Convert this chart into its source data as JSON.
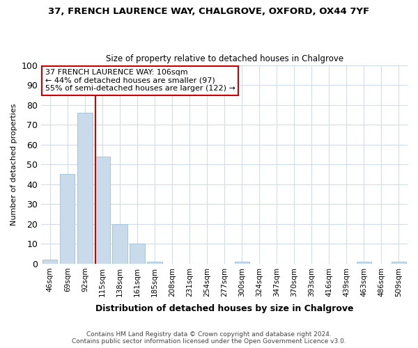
{
  "title": "37, FRENCH LAURENCE WAY, CHALGROVE, OXFORD, OX44 7YF",
  "subtitle": "Size of property relative to detached houses in Chalgrove",
  "xlabel": "Distribution of detached houses by size in Chalgrove",
  "ylabel": "Number of detached properties",
  "bar_labels": [
    "46sqm",
    "69sqm",
    "92sqm",
    "115sqm",
    "138sqm",
    "161sqm",
    "185sqm",
    "208sqm",
    "231sqm",
    "254sqm",
    "277sqm",
    "300sqm",
    "324sqm",
    "347sqm",
    "370sqm",
    "393sqm",
    "416sqm",
    "439sqm",
    "463sqm",
    "486sqm",
    "509sqm"
  ],
  "bar_values": [
    2,
    45,
    76,
    54,
    20,
    10,
    1,
    0,
    0,
    0,
    0,
    1,
    0,
    0,
    0,
    0,
    0,
    0,
    1,
    0,
    1
  ],
  "bar_color": "#c9daea",
  "bar_edge_color": "#a8c4d8",
  "vline_color": "#cc0000",
  "annotation_title": "37 FRENCH LAURENCE WAY: 106sqm",
  "annotation_line2": "← 44% of detached houses are smaller (97)",
  "annotation_line3": "55% of semi-detached houses are larger (122) →",
  "annotation_box_color": "#ffffff",
  "annotation_box_edge": "#cc0000",
  "ylim": [
    0,
    100
  ],
  "yticks": [
    0,
    10,
    20,
    30,
    40,
    50,
    60,
    70,
    80,
    90,
    100
  ],
  "footer_line1": "Contains HM Land Registry data © Crown copyright and database right 2024.",
  "footer_line2": "Contains public sector information licensed under the Open Government Licence v3.0.",
  "bg_color": "#ffffff",
  "grid_color": "#d0dce8",
  "title_fontsize": 9.5,
  "subtitle_fontsize": 8.5,
  "tick_fontsize": 7.5,
  "ylabel_fontsize": 8.0,
  "xlabel_fontsize": 9.0,
  "annotation_fontsize": 8.0,
  "footer_fontsize": 6.5
}
